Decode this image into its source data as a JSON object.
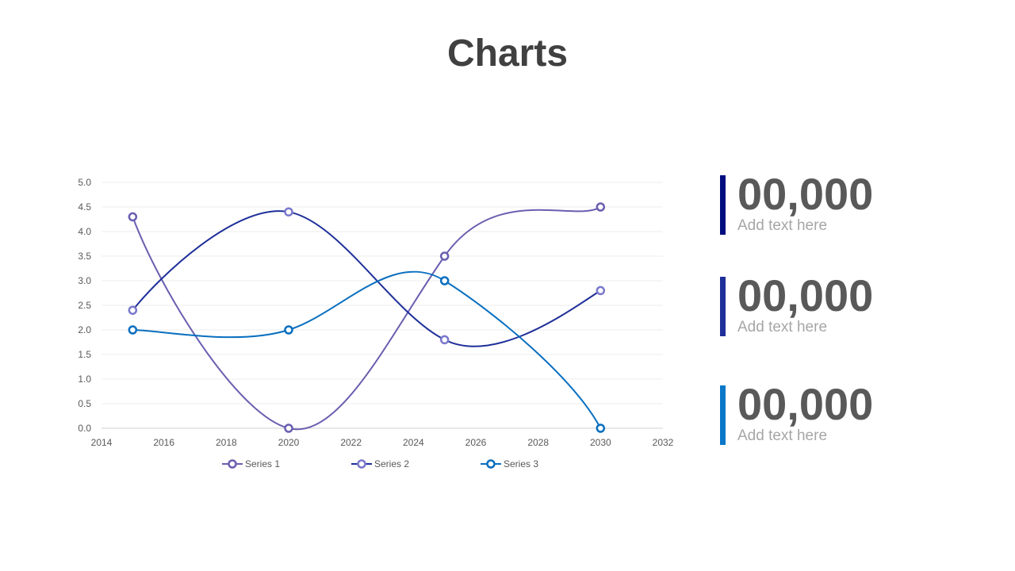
{
  "page": {
    "title": "Charts"
  },
  "chart_data": {
    "type": "line",
    "smooth": true,
    "x": [
      2015,
      2020,
      2025,
      2030
    ],
    "xlim": [
      2014,
      2032
    ],
    "xticks": [
      "2014",
      "2016",
      "2018",
      "2020",
      "2022",
      "2024",
      "2026",
      "2028",
      "2030",
      "2032"
    ],
    "ylim": [
      0,
      5
    ],
    "yticks": [
      "0.0",
      "0.5",
      "1.0",
      "1.5",
      "2.0",
      "2.5",
      "3.0",
      "3.5",
      "4.0",
      "4.5",
      "5.0"
    ],
    "grid": true,
    "legend_position": "bottom",
    "series": [
      {
        "name": "Series 1",
        "values": [
          4.3,
          0.0,
          3.5,
          4.5
        ],
        "color": "#6a5fb0"
      },
      {
        "name": "Series 2",
        "values": [
          2.4,
          4.4,
          1.8,
          2.8
        ],
        "color": "#1e2f99",
        "marker_color": "#7a78cc"
      },
      {
        "name": "Series 3",
        "values": [
          2.0,
          2.0,
          3.0,
          0.0
        ],
        "color": "#0a6fbf"
      }
    ]
  },
  "stats": [
    {
      "value": "00,000",
      "caption": "Add text here",
      "color": "#000d80"
    },
    {
      "value": "00,000",
      "caption": "Add text here",
      "color": "#1e2f99"
    },
    {
      "value": "00,000",
      "caption": "Add text here",
      "color": "#0a78c8"
    }
  ]
}
